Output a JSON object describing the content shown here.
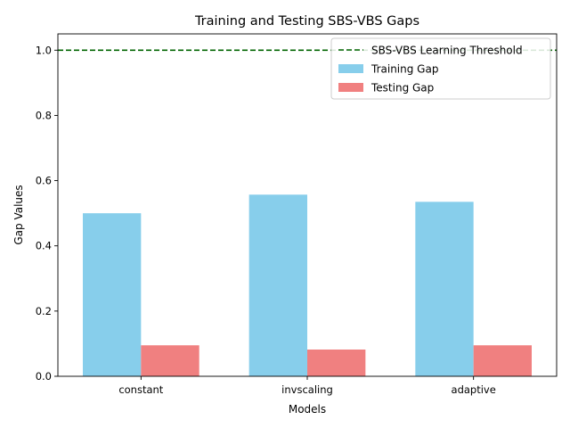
{
  "chart_data": {
    "type": "bar",
    "title": "Training and Testing SBS-VBS Gaps",
    "xlabel": "Models",
    "ylabel": "Gap Values",
    "categories": [
      "constant",
      "invscaling",
      "adaptive"
    ],
    "series": [
      {
        "name": "Training Gap",
        "values": [
          0.5,
          0.557,
          0.535
        ],
        "color": "#87ceeb"
      },
      {
        "name": "Testing Gap",
        "values": [
          0.095,
          0.082,
          0.095
        ],
        "color": "#f08080"
      }
    ],
    "threshold": {
      "name": "SBS-VBS Learning Threshold",
      "value": 1.0,
      "color": "#006400",
      "style": "dashed"
    },
    "ylim": [
      0,
      1.05
    ],
    "yticks": [
      0.0,
      0.2,
      0.4,
      0.6,
      0.8,
      1.0
    ],
    "ytick_labels": [
      "0.0",
      "0.2",
      "0.4",
      "0.6",
      "0.8",
      "1.0"
    ],
    "grid": false,
    "legend_position": "top-right"
  }
}
